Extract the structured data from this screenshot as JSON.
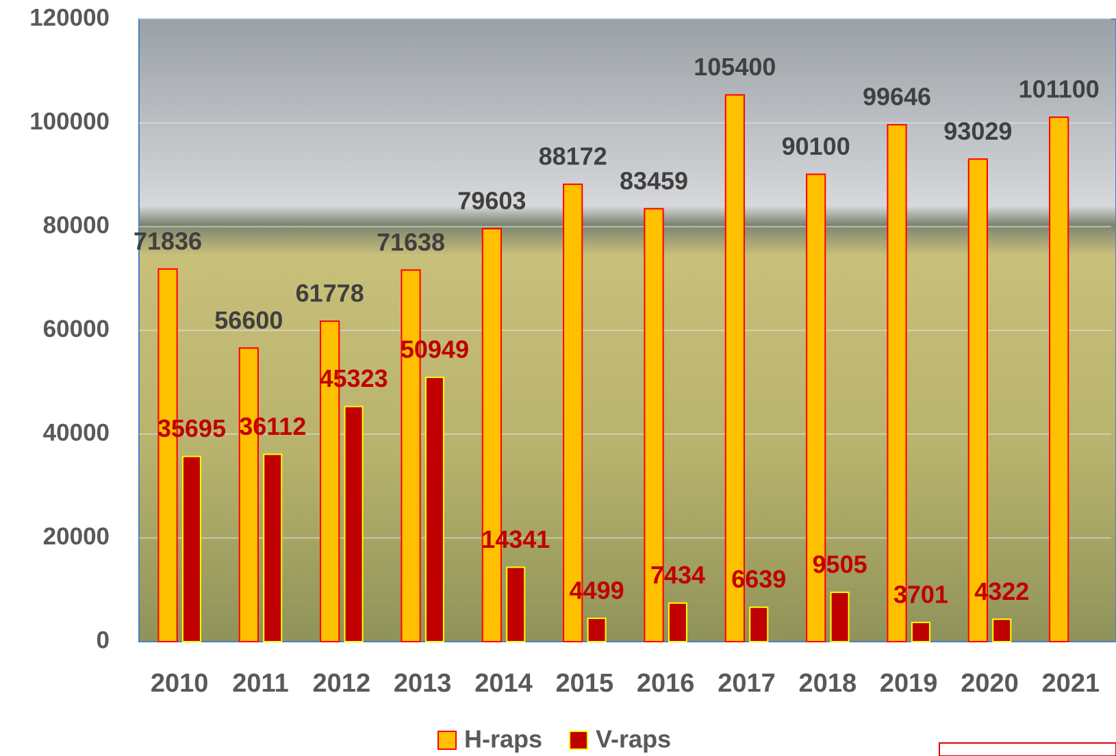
{
  "chart_data": {
    "type": "bar",
    "categories": [
      "2010",
      "2011",
      "2012",
      "2013",
      "2014",
      "2015",
      "2016",
      "2017",
      "2018",
      "2019",
      "2020",
      "2021"
    ],
    "series": [
      {
        "name": "H-raps",
        "color": "#FFC000",
        "label_color": "#404040",
        "values": [
          71836,
          56600,
          61778,
          71638,
          79603,
          88172,
          83459,
          105400,
          90100,
          99646,
          93029,
          101100
        ]
      },
      {
        "name": "V-raps",
        "color": "#C00000",
        "label_color": "#C00000",
        "values": [
          35695,
          36112,
          45323,
          50949,
          14341,
          4499,
          7434,
          6639,
          9505,
          3701,
          4322,
          null
        ]
      }
    ],
    "ylim": [
      0,
      120000
    ],
    "yticks": [
      0,
      20000,
      40000,
      60000,
      80000,
      100000,
      120000
    ],
    "grid": true,
    "legend": "bottom"
  }
}
